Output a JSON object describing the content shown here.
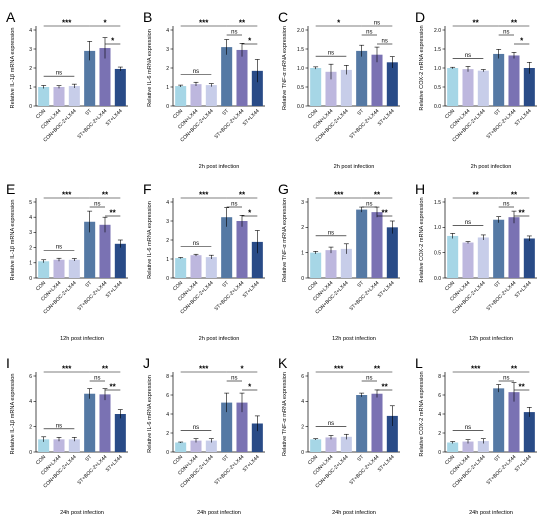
{
  "chart_data": [
    {
      "type": "bar",
      "letter": "A",
      "ylabel": "Relative IL-1β mRNA expression",
      "footer": "",
      "categories": [
        "CON",
        "CON+LX44",
        "CON+BOC-2+LX44",
        "ST",
        "ST+BOC-2+LX44",
        "ST+LX44"
      ],
      "values": [
        1.0,
        1.0,
        1.05,
        2.9,
        3.05,
        1.95
      ],
      "errors": [
        0.08,
        0.07,
        0.1,
        0.5,
        0.55,
        0.1
      ],
      "ylim": [
        0,
        4
      ],
      "yticks": [
        "0",
        "1",
        "2",
        "3",
        "4"
      ],
      "comparisons": [
        {
          "a": 0,
          "b": 3,
          "label": "***"
        },
        {
          "a": 0,
          "b": 2,
          "label": "ns"
        },
        {
          "a": 3,
          "b": 5,
          "label": "*"
        },
        {
          "a": 4,
          "b": 5,
          "label": "*"
        }
      ]
    },
    {
      "type": "bar",
      "letter": "B",
      "ylabel": "Relative IL-6 mRNA expression",
      "footer": "2h post infection",
      "categories": [
        "CON",
        "CON+LX44",
        "CON+BOC-2+LX44",
        "ST",
        "ST+BOC-2+LX44",
        "ST+LX44"
      ],
      "values": [
        1.05,
        1.15,
        1.1,
        3.1,
        2.95,
        1.85
      ],
      "errors": [
        0.05,
        0.1,
        0.08,
        0.4,
        0.35,
        0.6
      ],
      "ylim": [
        0,
        4
      ],
      "yticks": [
        "0",
        "1",
        "2",
        "3",
        "4"
      ],
      "comparisons": [
        {
          "a": 0,
          "b": 3,
          "label": "***"
        },
        {
          "a": 0,
          "b": 2,
          "label": "ns"
        },
        {
          "a": 3,
          "b": 5,
          "label": "**"
        },
        {
          "a": 3,
          "b": 4,
          "label": "ns"
        },
        {
          "a": 4,
          "b": 5,
          "label": "*"
        }
      ]
    },
    {
      "type": "bar",
      "letter": "C",
      "ylabel": "Relative TNF-α mRNA expression",
      "footer": "2h post infection",
      "categories": [
        "CON",
        "CON+LX44",
        "CON+BOC-2+LX44",
        "ST",
        "ST+BOC-2+LX44",
        "ST+LX44"
      ],
      "values": [
        1.0,
        0.9,
        0.95,
        1.45,
        1.35,
        1.15
      ],
      "errors": [
        0.03,
        0.2,
        0.12,
        0.15,
        0.2,
        0.15
      ],
      "ylim": [
        0,
        2.0
      ],
      "yticks": [
        "0.0",
        "0.5",
        "1.0",
        "1.5",
        "2.0"
      ],
      "comparisons": [
        {
          "a": 0,
          "b": 3,
          "label": "*"
        },
        {
          "a": 0,
          "b": 2,
          "label": "ns"
        },
        {
          "a": 3,
          "b": 5,
          "label": "ns"
        },
        {
          "a": 3,
          "b": 4,
          "label": "ns"
        },
        {
          "a": 4,
          "b": 5,
          "label": "ns"
        }
      ]
    },
    {
      "type": "bar",
      "letter": "D",
      "ylabel": "Relative COX-2 mRNA expression",
      "footer": "2h post infection",
      "categories": [
        "CON",
        "CON+LX44",
        "CON+BOC-2+LX44",
        "ST",
        "ST+BOC-2+LX44",
        "ST+LX44"
      ],
      "values": [
        1.0,
        0.97,
        0.93,
        1.37,
        1.33,
        1.0
      ],
      "errors": [
        0.02,
        0.07,
        0.03,
        0.12,
        0.08,
        0.15
      ],
      "ylim": [
        0,
        2.0
      ],
      "yticks": [
        "0.0",
        "0.5",
        "1.0",
        "1.5",
        "2.0"
      ],
      "comparisons": [
        {
          "a": 0,
          "b": 3,
          "label": "**"
        },
        {
          "a": 0,
          "b": 2,
          "label": "ns"
        },
        {
          "a": 3,
          "b": 5,
          "label": "**"
        },
        {
          "a": 3,
          "b": 4,
          "label": "ns"
        },
        {
          "a": 4,
          "b": 5,
          "label": "*"
        }
      ]
    },
    {
      "type": "bar",
      "letter": "E",
      "ylabel": "Relative IL-1β mRNA expression",
      "footer": "12h post infection",
      "categories": [
        "CON",
        "CON+LX44",
        "CON+BOC-2+LX44",
        "ST",
        "ST+BOC-2+LX44",
        "ST+LX44"
      ],
      "values": [
        1.1,
        1.2,
        1.2,
        3.7,
        3.5,
        2.25
      ],
      "errors": [
        0.1,
        0.1,
        0.08,
        0.7,
        0.5,
        0.25
      ],
      "ylim": [
        0,
        5
      ],
      "yticks": [
        "0",
        "1",
        "2",
        "3",
        "4",
        "5"
      ],
      "comparisons": [
        {
          "a": 0,
          "b": 3,
          "label": "***"
        },
        {
          "a": 0,
          "b": 2,
          "label": "ns"
        },
        {
          "a": 3,
          "b": 5,
          "label": "**"
        },
        {
          "a": 3,
          "b": 4,
          "label": "ns"
        },
        {
          "a": 4,
          "b": 5,
          "label": "**"
        }
      ]
    },
    {
      "type": "bar",
      "letter": "F",
      "ylabel": "Relative IL-6 mRNA expression",
      "footer": "2h post infection",
      "categories": [
        "CON",
        "CON+LX44",
        "CON+BOC-2+LX44",
        "ST",
        "ST+BOC-2+LX44",
        "ST+LX44"
      ],
      "values": [
        1.05,
        1.2,
        1.1,
        3.2,
        3.0,
        1.9
      ],
      "errors": [
        0.03,
        0.05,
        0.1,
        0.5,
        0.3,
        0.6
      ],
      "ylim": [
        0,
        4
      ],
      "yticks": [
        "0",
        "1",
        "2",
        "3",
        "4"
      ],
      "comparisons": [
        {
          "a": 0,
          "b": 3,
          "label": "***"
        },
        {
          "a": 0,
          "b": 2,
          "label": "ns"
        },
        {
          "a": 3,
          "b": 5,
          "label": "**"
        },
        {
          "a": 3,
          "b": 4,
          "label": "ns"
        },
        {
          "a": 4,
          "b": 5,
          "label": "*"
        }
      ]
    },
    {
      "type": "bar",
      "letter": "G",
      "ylabel": "Relative TNF-α mRNA expression",
      "footer": "12h post infection",
      "categories": [
        "CON",
        "CON+LX44",
        "CON+BOC-2+LX44",
        "ST",
        "ST+BOC-2+LX44",
        "ST+LX44"
      ],
      "values": [
        1.0,
        1.1,
        1.15,
        2.7,
        2.6,
        2.0
      ],
      "errors": [
        0.05,
        0.12,
        0.2,
        0.1,
        0.2,
        0.25
      ],
      "ylim": [
        0,
        3
      ],
      "yticks": [
        "0",
        "1",
        "2",
        "3"
      ],
      "comparisons": [
        {
          "a": 0,
          "b": 3,
          "label": "***"
        },
        {
          "a": 0,
          "b": 2,
          "label": "ns"
        },
        {
          "a": 3,
          "b": 5,
          "label": "**"
        },
        {
          "a": 3,
          "b": 4,
          "label": "ns"
        },
        {
          "a": 4,
          "b": 5,
          "label": "**"
        }
      ]
    },
    {
      "type": "bar",
      "letter": "H",
      "ylabel": "Relative COX-2 mRNA expression",
      "footer": "12h post infection",
      "categories": [
        "CON",
        "CON+LX44",
        "CON+BOC-2+LX44",
        "ST",
        "ST+BOC-2+LX44",
        "ST+LX44"
      ],
      "values": [
        0.83,
        0.7,
        0.8,
        1.15,
        1.2,
        0.78
      ],
      "errors": [
        0.05,
        0.02,
        0.05,
        0.06,
        0.12,
        0.05
      ],
      "ylim": [
        0,
        1.5
      ],
      "yticks": [
        "0.0",
        "0.5",
        "1.0",
        "1.5"
      ],
      "comparisons": [
        {
          "a": 0,
          "b": 3,
          "label": "**"
        },
        {
          "a": 0,
          "b": 2,
          "label": "ns"
        },
        {
          "a": 3,
          "b": 5,
          "label": "**"
        },
        {
          "a": 3,
          "b": 4,
          "label": "ns"
        },
        {
          "a": 4,
          "b": 5,
          "label": "**"
        }
      ]
    },
    {
      "type": "bar",
      "letter": "I",
      "ylabel": "Relative IL-1β mRNA expression",
      "footer": "24h post infection",
      "categories": [
        "CON",
        "CON+LX44",
        "CON+BOC-2+LX44",
        "ST",
        "ST+BOC-2+LX44",
        "ST+LX44"
      ],
      "values": [
        1.0,
        1.0,
        1.0,
        4.6,
        4.55,
        3.0
      ],
      "errors": [
        0.2,
        0.15,
        0.15,
        0.4,
        0.45,
        0.35
      ],
      "ylim": [
        0,
        6
      ],
      "yticks": [
        "0",
        "2",
        "4",
        "6"
      ],
      "comparisons": [
        {
          "a": 0,
          "b": 3,
          "label": "***"
        },
        {
          "a": 0,
          "b": 2,
          "label": "ns"
        },
        {
          "a": 3,
          "b": 5,
          "label": "**"
        },
        {
          "a": 3,
          "b": 4,
          "label": "ns"
        },
        {
          "a": 4,
          "b": 5,
          "label": "**"
        }
      ]
    },
    {
      "type": "bar",
      "letter": "J",
      "ylabel": "Relative IL-6 mRNA expression",
      "footer": "24h post infection",
      "categories": [
        "CON",
        "CON+LX44",
        "CON+BOC-2+LX44",
        "ST",
        "ST+BOC-2+LX44",
        "ST+LX44"
      ],
      "values": [
        1.0,
        1.2,
        1.2,
        5.2,
        5.2,
        3.0
      ],
      "errors": [
        0.05,
        0.2,
        0.2,
        1.0,
        1.0,
        0.8
      ],
      "ylim": [
        0,
        8
      ],
      "yticks": [
        "0",
        "2",
        "4",
        "6",
        "8"
      ],
      "comparisons": [
        {
          "a": 0,
          "b": 3,
          "label": "***"
        },
        {
          "a": 0,
          "b": 2,
          "label": "ns"
        },
        {
          "a": 3,
          "b": 5,
          "label": "*"
        },
        {
          "a": 3,
          "b": 4,
          "label": "ns"
        },
        {
          "a": 4,
          "b": 5,
          "label": "*"
        }
      ]
    },
    {
      "type": "bar",
      "letter": "K",
      "ylabel": "Relative TNF-α mRNA expression",
      "footer": "24h post infection",
      "categories": [
        "CON",
        "CON+LX44",
        "CON+BOC-2+LX44",
        "ST",
        "ST+BOC-2+LX44",
        "ST+LX44"
      ],
      "values": [
        1.0,
        1.15,
        1.2,
        4.5,
        4.6,
        2.85
      ],
      "errors": [
        0.05,
        0.15,
        0.2,
        0.15,
        0.3,
        0.8
      ],
      "ylim": [
        0,
        6
      ],
      "yticks": [
        "0",
        "2",
        "4",
        "6"
      ],
      "comparisons": [
        {
          "a": 0,
          "b": 3,
          "label": "***"
        },
        {
          "a": 0,
          "b": 2,
          "label": "ns"
        },
        {
          "a": 3,
          "b": 5,
          "label": "**"
        },
        {
          "a": 3,
          "b": 4,
          "label": "ns"
        },
        {
          "a": 4,
          "b": 5,
          "label": "**"
        }
      ]
    },
    {
      "type": "bar",
      "letter": "L",
      "ylabel": "Relative COX-2 mRNA expression",
      "footer": "24h post infection",
      "categories": [
        "CON",
        "CON+LX44",
        "CON+BOC-2+LX44",
        "ST",
        "ST+BOC-2+LX44",
        "ST+LX44"
      ],
      "values": [
        1.0,
        1.1,
        1.15,
        6.7,
        6.3,
        4.2
      ],
      "errors": [
        0.1,
        0.2,
        0.25,
        0.4,
        1.0,
        0.5
      ],
      "ylim": [
        0,
        8
      ],
      "yticks": [
        "0",
        "2",
        "4",
        "6",
        "8"
      ],
      "comparisons": [
        {
          "a": 0,
          "b": 3,
          "label": "***"
        },
        {
          "a": 0,
          "b": 2,
          "label": "ns"
        },
        {
          "a": 3,
          "b": 5,
          "label": "**"
        },
        {
          "a": 3,
          "b": 4,
          "label": "ns"
        },
        {
          "a": 4,
          "b": 5,
          "label": "**"
        }
      ]
    }
  ],
  "bar_colors": [
    "#a6d6e6",
    "#bdb7de",
    "#c7cde9",
    "#5579a4",
    "#7a72b3",
    "#294b87"
  ],
  "grid": false,
  "legend": "none"
}
